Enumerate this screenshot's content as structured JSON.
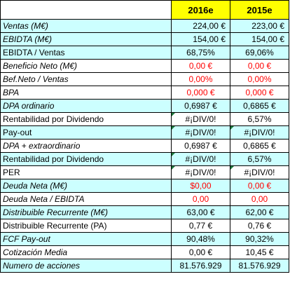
{
  "header": {
    "col1": "2016e",
    "col2": "2015e"
  },
  "rows": [
    {
      "label": "Ventas (M€)",
      "v1": "224,00 €",
      "v2": "223,00 €"
    },
    {
      "label": "EBIDTA (M€)",
      "v1": "154,00 €",
      "v2": "154,00 €"
    },
    {
      "label": "EBIDTA / Ventas",
      "v1": "68,75%",
      "v2": "69,06%"
    },
    {
      "label": "Beneficio Neto (M€)",
      "v1": "0,00 €",
      "v2": "0,00 €"
    },
    {
      "label": "Bef.Neto / Ventas",
      "v1": "0,00%",
      "v2": "0,00%"
    },
    {
      "label": "BPA",
      "v1": "0,000 €",
      "v2": "0,000 €"
    },
    {
      "label": "DPA ordinario",
      "v1": "0,6987 €",
      "v2": "0,6865 €"
    },
    {
      "label": "Rentabilidad por Dividendo",
      "v1": "#¡DIV/0!",
      "v2": "6,57%"
    },
    {
      "label": "Pay-out",
      "v1": "#¡DIV/0!",
      "v2": "#¡DIV/0!"
    },
    {
      "label": "DPA + extraordinario",
      "v1": "0,6987 €",
      "v2": "0,6865 €"
    },
    {
      "label": "Rentabilidad por Dividendo",
      "v1": "#¡DIV/0!",
      "v2": "6,57%"
    },
    {
      "label": "PER",
      "v1": "#¡DIV/0!",
      "v2": "#¡DIV/0!"
    },
    {
      "label": "Deuda Neta (M€)",
      "v1": "$0,00",
      "v2": "0,00 €"
    },
    {
      "label": "Deuda Neta / EBIDTA",
      "v1": "0,00",
      "v2": "0,00"
    },
    {
      "label": "Distribuible Recurrente (M€)",
      "v1": "63,00 €",
      "v2": "62,00 €"
    },
    {
      "label": "Distribuible Recurrente (PA)",
      "v1": "0,77 €",
      "v2": "0,76 €"
    },
    {
      "label": "FCF Pay-out",
      "v1": "90,48%",
      "v2": "90,32%"
    },
    {
      "label": "Cotización Media",
      "v1": "0,00 €",
      "v2": "10,45 €"
    },
    {
      "label": "Numero de acciones",
      "v1": "81.576.929",
      "v2": "81.576.929"
    }
  ],
  "colors": {
    "header_bg": "#ffff00",
    "row_cyan": "#ccffff",
    "negative_text": "#ff0000",
    "error_flag": "#1e7a3c"
  }
}
